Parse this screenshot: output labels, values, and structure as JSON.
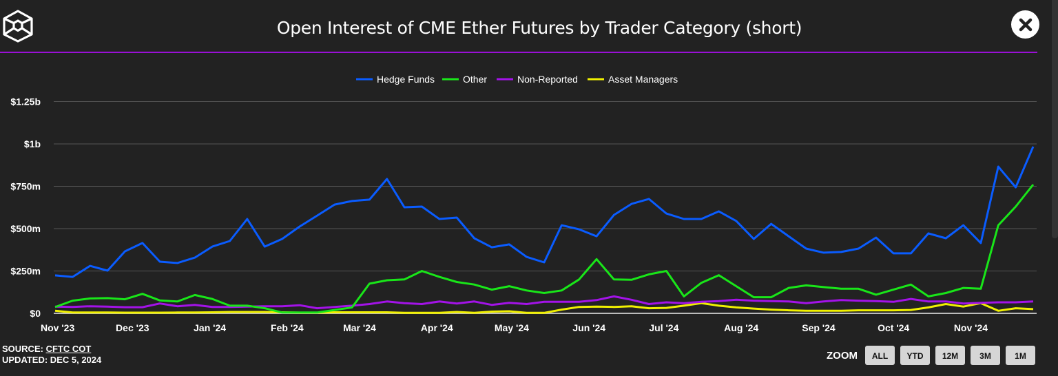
{
  "header": {
    "title": "Open Interest of CME Ether Futures by Trader Category (short)",
    "logo": "cube-logo",
    "close_icon": "close-x-icon"
  },
  "footer": {
    "source_label": "SOURCE: ",
    "source_link": "CFTC COT",
    "updated": "UPDATED: DEC 5, 2024"
  },
  "zoom": {
    "label": "ZOOM",
    "buttons": [
      "ALL",
      "YTD",
      "12M",
      "3M",
      "1M"
    ]
  },
  "colors": {
    "accent": "#9a10d6",
    "background": "#222222"
  },
  "chart_data": {
    "type": "line",
    "title": "Open Interest of CME Ether Futures by Trader Category (short)",
    "legend_position": "top-center",
    "grid": true,
    "ylim": [
      0,
      1250
    ],
    "y_ticks": [
      {
        "value": 0,
        "label": "$0"
      },
      {
        "value": 250,
        "label": "$250m"
      },
      {
        "value": 500,
        "label": "$500m"
      },
      {
        "value": 750,
        "label": "$750m"
      },
      {
        "value": 1000,
        "label": "$1b"
      },
      {
        "value": 1250,
        "label": "$1.25b"
      }
    ],
    "x_ticks": [
      {
        "date": "2023-11-01",
        "label": "Nov '23"
      },
      {
        "date": "2023-12-01",
        "label": "Dec '23"
      },
      {
        "date": "2024-01-01",
        "label": "Jan '24"
      },
      {
        "date": "2024-02-01",
        "label": "Feb '24"
      },
      {
        "date": "2024-03-01",
        "label": "Mar '24"
      },
      {
        "date": "2024-04-01",
        "label": "Apr '24"
      },
      {
        "date": "2024-05-01",
        "label": "May '24"
      },
      {
        "date": "2024-06-01",
        "label": "Jun '24"
      },
      {
        "date": "2024-07-01",
        "label": "Jul '24"
      },
      {
        "date": "2024-08-01",
        "label": "Aug '24"
      },
      {
        "date": "2024-09-01",
        "label": "Sep '24"
      },
      {
        "date": "2024-10-01",
        "label": "Oct '24"
      },
      {
        "date": "2024-11-01",
        "label": "Nov '24"
      }
    ],
    "x_start": "2023-10-31",
    "x_step_days": 7,
    "y_unit": "USD millions",
    "series": [
      {
        "name": "Hedge Funds",
        "color": "#0a5cff",
        "values": [
          224,
          215,
          280,
          252,
          366,
          415,
          305,
          297,
          329,
          394,
          427,
          557,
          394,
          439,
          512,
          577,
          642,
          663,
          671,
          793,
          626,
          630,
          557,
          565,
          443,
          390,
          407,
          333,
          301,
          520,
          496,
          455,
          581,
          646,
          675,
          589,
          557,
          557,
          602,
          545,
          439,
          528,
          455,
          382,
          358,
          362,
          382,
          447,
          354,
          354,
          472,
          443,
          520,
          415,
          866,
          744,
          984
        ]
      },
      {
        "name": "Other",
        "color": "#19e619",
        "values": [
          37,
          75,
          88,
          90,
          83,
          115,
          76,
          70,
          108,
          85,
          45,
          45,
          30,
          5,
          5,
          5,
          20,
          35,
          175,
          195,
          200,
          250,
          215,
          185,
          170,
          140,
          160,
          135,
          120,
          135,
          200,
          320,
          200,
          198,
          230,
          250,
          100,
          180,
          225,
          160,
          95,
          95,
          150,
          165,
          155,
          145,
          145,
          110,
          140,
          170,
          100,
          120,
          150,
          145,
          520,
          630,
          760
        ]
      },
      {
        "name": "Non-Reported",
        "color": "#a313e8",
        "values": [
          40,
          38,
          42,
          40,
          36,
          36,
          58,
          42,
          50,
          38,
          38,
          40,
          42,
          42,
          48,
          30,
          38,
          45,
          55,
          70,
          60,
          55,
          70,
          58,
          70,
          50,
          62,
          55,
          68,
          68,
          68,
          78,
          100,
          80,
          55,
          65,
          60,
          68,
          72,
          80,
          75,
          72,
          70,
          60,
          70,
          78,
          75,
          72,
          68,
          85,
          70,
          70,
          58,
          62,
          65,
          65,
          70
        ]
      },
      {
        "name": "Asset Managers",
        "color": "#f0f000",
        "values": [
          15,
          5,
          5,
          5,
          4,
          4,
          4,
          5,
          5,
          6,
          8,
          8,
          8,
          6,
          4,
          4,
          6,
          6,
          6,
          6,
          3,
          3,
          3,
          8,
          3,
          10,
          12,
          3,
          3,
          22,
          38,
          40,
          38,
          42,
          30,
          32,
          45,
          60,
          45,
          35,
          28,
          22,
          18,
          15,
          15,
          15,
          18,
          18,
          18,
          20,
          35,
          55,
          40,
          60,
          15,
          30,
          25
        ]
      }
    ]
  }
}
